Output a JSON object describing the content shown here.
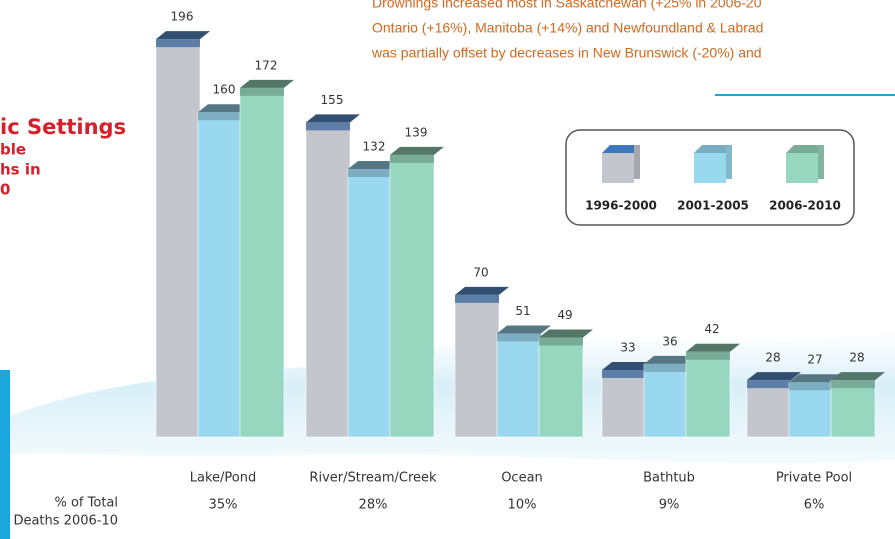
{
  "chart_data": {
    "type": "bar",
    "intro_lines": [
      "Drownings increased most in Saskatchewan (+25% in 2006-20",
      "Ontario (+16%), Manitoba (+14%) and Newfoundland & Labrad",
      "was partially offset by decreases in New Brunswick (-20%) and"
    ],
    "side_title": "ic Settings",
    "side_subtitle_lines": [
      "ble",
      "hs in",
      "0"
    ],
    "categories": [
      "Lake/Pond",
      "River/Stream/Creek",
      "Ocean",
      "Bathtub",
      "Private Pool"
    ],
    "series": [
      {
        "name": "1996-2000",
        "color": "#c3c6cc",
        "values": [
          196,
          155,
          70,
          33,
          28
        ]
      },
      {
        "name": "2001-2005",
        "color": "#9ad8f0",
        "values": [
          160,
          132,
          51,
          36,
          27
        ]
      },
      {
        "name": "2006-2010",
        "color": "#97d6bf",
        "values": [
          172,
          139,
          49,
          42,
          28
        ]
      }
    ],
    "share_title_lines": [
      "% of Total",
      "Deaths 2006-10"
    ],
    "share_labels": [
      "35%",
      "28%",
      "10%",
      "9%",
      "6%"
    ]
  }
}
